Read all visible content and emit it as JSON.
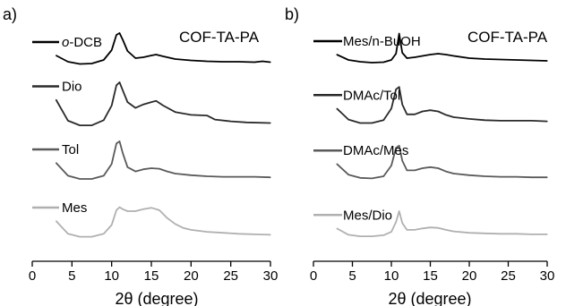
{
  "chart_data": [
    {
      "type": "line",
      "panel_label": "a)",
      "title": "COF-TA-PA",
      "xlabel": "2θ (degree)",
      "ylabel": "",
      "xlim": [
        0,
        30
      ],
      "xticks": [
        "0",
        "5",
        "10",
        "15",
        "20",
        "25",
        "30"
      ],
      "grid": false,
      "legend_placement": "inline-left",
      "series": [
        {
          "name": "o-DCB",
          "name_prefix": "o",
          "name_suffix": "-DCB",
          "color": "#000000",
          "x": [
            3.0,
            4.5,
            6.0,
            7.5,
            9.0,
            10.0,
            10.6,
            11.0,
            11.4,
            12.0,
            13.0,
            14.0,
            15.0,
            15.6,
            16.5,
            18.0,
            20.0,
            22.0,
            24.0,
            26.0,
            28.0,
            29.0,
            30.0
          ],
          "y": [
            0.5,
            0.36,
            0.31,
            0.32,
            0.4,
            0.62,
            0.96,
            1.0,
            0.85,
            0.6,
            0.44,
            0.46,
            0.5,
            0.52,
            0.48,
            0.42,
            0.39,
            0.37,
            0.36,
            0.36,
            0.35,
            0.37,
            0.35
          ]
        },
        {
          "name": "Dio",
          "color": "#2a2a2a",
          "x": [
            3.0,
            4.5,
            6.0,
            7.5,
            9.0,
            10.0,
            10.6,
            11.0,
            11.4,
            12.0,
            13.0,
            14.0,
            15.0,
            15.6,
            16.5,
            18.0,
            20.0,
            22.0,
            23.0,
            25.0,
            27.0,
            30.0
          ],
          "y": [
            0.7,
            0.34,
            0.26,
            0.26,
            0.35,
            0.6,
            0.95,
            1.0,
            0.86,
            0.66,
            0.56,
            0.62,
            0.66,
            0.68,
            0.6,
            0.49,
            0.44,
            0.43,
            0.36,
            0.33,
            0.31,
            0.3
          ]
        },
        {
          "name": "Tol",
          "color": "#5a5a5a",
          "x": [
            3.0,
            4.5,
            6.0,
            7.5,
            9.0,
            10.0,
            10.6,
            11.0,
            11.4,
            12.0,
            13.0,
            14.0,
            15.0,
            16.0,
            17.0,
            18.0,
            20.0,
            22.0,
            24.0,
            26.0,
            28.0,
            30.0
          ],
          "y": [
            0.6,
            0.36,
            0.3,
            0.3,
            0.36,
            0.58,
            0.96,
            1.0,
            0.78,
            0.52,
            0.44,
            0.48,
            0.5,
            0.49,
            0.44,
            0.4,
            0.37,
            0.35,
            0.34,
            0.34,
            0.34,
            0.33
          ]
        },
        {
          "name": "Mes",
          "color": "#b0b0b0",
          "x": [
            3.0,
            4.5,
            6.0,
            7.5,
            9.0,
            10.0,
            10.6,
            11.0,
            11.4,
            12.0,
            13.0,
            14.0,
            15.0,
            16.0,
            17.0,
            18.0,
            19.0,
            20.0,
            22.0,
            24.0,
            26.0,
            28.0,
            30.0
          ],
          "y": [
            0.6,
            0.34,
            0.28,
            0.28,
            0.34,
            0.52,
            0.82,
            0.88,
            0.84,
            0.8,
            0.8,
            0.84,
            0.87,
            0.82,
            0.66,
            0.54,
            0.46,
            0.42,
            0.38,
            0.36,
            0.34,
            0.33,
            0.32
          ]
        }
      ]
    },
    {
      "type": "line",
      "panel_label": "b)",
      "title": "COF-TA-PA",
      "xlabel": "2θ (degree)",
      "ylabel": "",
      "xlim": [
        0,
        30
      ],
      "xticks": [
        "0",
        "5",
        "10",
        "15",
        "20",
        "25",
        "30"
      ],
      "grid": false,
      "legend_placement": "inline-left",
      "series": [
        {
          "name": "Mes/n-BuOH",
          "color": "#000000",
          "x": [
            3.0,
            4.5,
            6.0,
            7.5,
            9.0,
            10.0,
            10.6,
            11.0,
            11.4,
            12.0,
            13.0,
            14.0,
            15.0,
            16.0,
            17.0,
            18.0,
            20.0,
            22.0,
            24.0,
            26.0,
            28.0,
            30.0
          ],
          "y": [
            0.48,
            0.36,
            0.32,
            0.3,
            0.31,
            0.36,
            0.5,
            0.95,
            0.52,
            0.4,
            0.42,
            0.45,
            0.48,
            0.5,
            0.48,
            0.45,
            0.4,
            0.38,
            0.37,
            0.36,
            0.35,
            0.34
          ]
        },
        {
          "name": "DMAc/Tol",
          "color": "#2a2a2a",
          "x": [
            3.0,
            4.5,
            6.0,
            7.5,
            9.0,
            10.0,
            10.6,
            11.0,
            11.4,
            12.0,
            13.0,
            14.0,
            15.0,
            16.0,
            17.0,
            18.0,
            20.0,
            22.0,
            24.0,
            26.0,
            28.0,
            30.0
          ],
          "y": [
            0.55,
            0.36,
            0.3,
            0.3,
            0.35,
            0.55,
            0.88,
            0.92,
            0.62,
            0.45,
            0.45,
            0.5,
            0.52,
            0.5,
            0.44,
            0.4,
            0.37,
            0.35,
            0.34,
            0.34,
            0.34,
            0.33
          ]
        },
        {
          "name": "DMAc/Mes",
          "color": "#5a5a5a",
          "x": [
            3.0,
            4.5,
            6.0,
            7.5,
            9.0,
            10.0,
            10.6,
            11.0,
            11.4,
            12.0,
            13.0,
            14.0,
            15.0,
            16.0,
            17.0,
            18.0,
            20.0,
            22.0,
            24.0,
            26.0,
            28.0,
            30.0
          ],
          "y": [
            0.58,
            0.38,
            0.32,
            0.31,
            0.35,
            0.55,
            0.88,
            0.92,
            0.64,
            0.46,
            0.46,
            0.5,
            0.52,
            0.5,
            0.44,
            0.4,
            0.37,
            0.35,
            0.34,
            0.34,
            0.33,
            0.33
          ]
        },
        {
          "name": "Mes/Dio",
          "color": "#b0b0b0",
          "x": [
            3.0,
            4.5,
            6.0,
            7.5,
            9.0,
            10.0,
            10.6,
            11.0,
            11.4,
            12.0,
            13.0,
            14.0,
            15.0,
            16.0,
            17.0,
            18.0,
            20.0,
            22.0,
            24.0,
            26.0,
            28.0,
            30.0
          ],
          "y": [
            0.45,
            0.32,
            0.29,
            0.29,
            0.31,
            0.38,
            0.58,
            0.8,
            0.56,
            0.42,
            0.42,
            0.45,
            0.47,
            0.46,
            0.42,
            0.39,
            0.36,
            0.35,
            0.34,
            0.34,
            0.33,
            0.33
          ]
        }
      ]
    }
  ]
}
